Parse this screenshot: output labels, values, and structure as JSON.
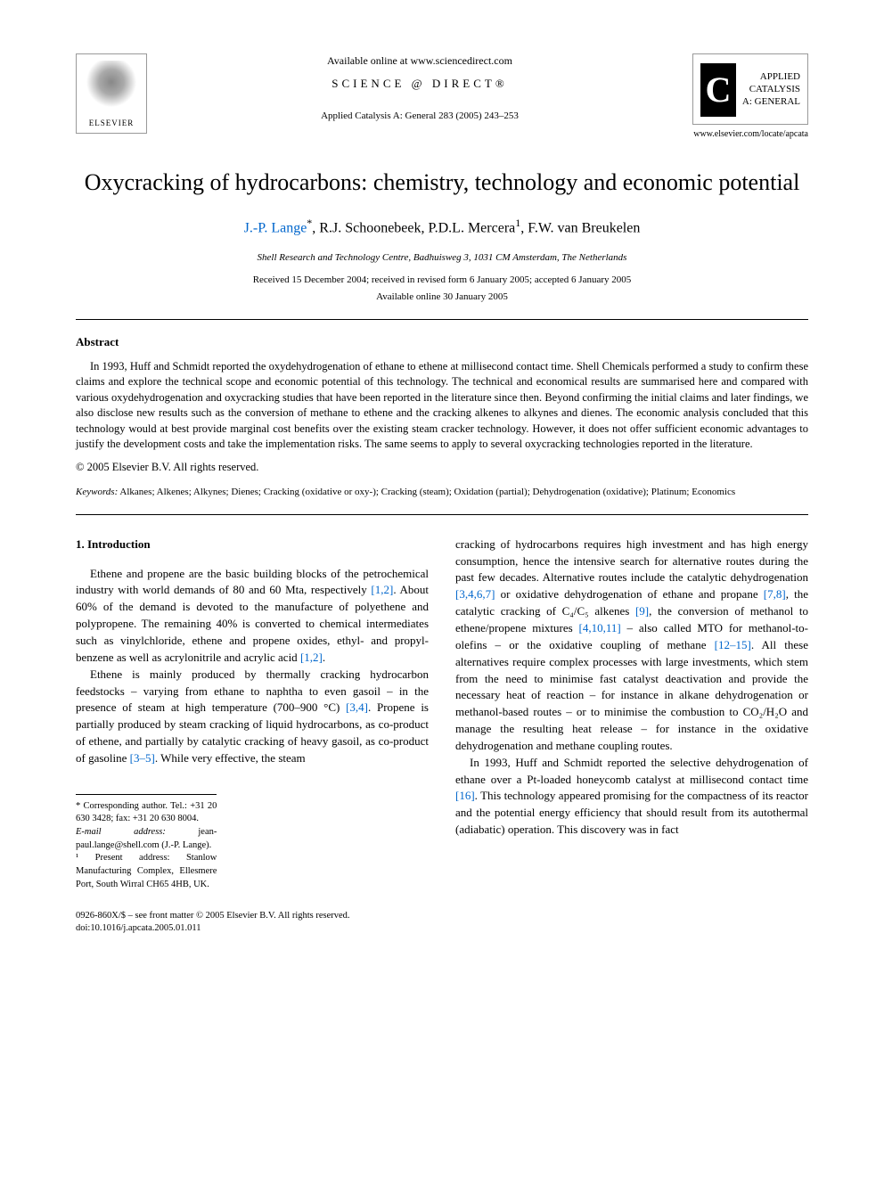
{
  "header": {
    "elsevier_label": "ELSEVIER",
    "available_online": "Available online at www.sciencedirect.com",
    "sciencedirect": "SCIENCE @ DIRECT®",
    "journal_ref": "Applied Catalysis A: General 283 (2005) 243–253",
    "journal_box_c": "C",
    "journal_box_line1": "APPLIED",
    "journal_box_line2": "CATALYSIS",
    "journal_box_line3": "A: GENERAL",
    "journal_url": "www.elsevier.com/locate/apcata"
  },
  "title": "Oxycracking of hydrocarbons: chemistry, technology and economic potential",
  "authors": {
    "a1": "J.-P. Lange",
    "a1_sup": "*",
    "a2": ", R.J. Schoonebeek, P.D.L. Mercera",
    "a2_sup": "1",
    "a3": ", F.W. van Breukelen"
  },
  "affiliation": "Shell Research and Technology Centre, Badhuisweg 3, 1031 CM Amsterdam, The Netherlands",
  "dates_line1": "Received 15 December 2004; received in revised form 6 January 2005; accepted 6 January 2005",
  "dates_line2": "Available online 30 January 2005",
  "abstract": {
    "heading": "Abstract",
    "text": "In 1993, Huff and Schmidt reported the oxydehydrogenation of ethane to ethene at millisecond contact time. Shell Chemicals performed a study to confirm these claims and explore the technical scope and economic potential of this technology. The technical and economical results are summarised here and compared with various oxydehydrogenation and oxycracking studies that have been reported in the literature since then. Beyond confirming the initial claims and later findings, we also disclose new results such as the conversion of methane to ethene and the cracking alkenes to alkynes and dienes. The economic analysis concluded that this technology would at best provide marginal cost benefits over the existing steam cracker technology. However, it does not offer sufficient economic advantages to justify the development costs and take the implementation risks. The same seems to apply to several oxycracking technologies reported in the literature.",
    "copyright": "© 2005 Elsevier B.V. All rights reserved."
  },
  "keywords": {
    "label": "Keywords:",
    "text": " Alkanes; Alkenes; Alkynes; Dienes; Cracking (oxidative or oxy-); Cracking (steam); Oxidation (partial); Dehydrogenation (oxidative); Platinum; Economics"
  },
  "section1": {
    "heading": "1. Introduction",
    "p1_a": "Ethene and propene are the basic building blocks of the petrochemical industry with world demands of 80 and 60 Mta, respectively ",
    "p1_ref1": "[1,2]",
    "p1_b": ". About 60% of the demand is devoted to the manufacture of polyethene and polypropene. The remaining 40% is converted to chemical intermediates such as vinylchloride, ethene and propene oxides, ethyl- and propyl-benzene as well as acrylonitrile and acrylic acid ",
    "p1_ref2": "[1,2]",
    "p1_c": ".",
    "p2_a": "Ethene is mainly produced by thermally cracking hydrocarbon feedstocks – varying from ethane to naphtha to even gasoil – in the presence of steam at high temperature (700–900 °C) ",
    "p2_ref1": "[3,4]",
    "p2_b": ". Propene is partially produced by steam cracking of liquid hydrocarbons, as co-product of ethene, and partially by catalytic cracking of heavy gasoil, as co-product of gasoline ",
    "p2_ref2": "[3–5]",
    "p2_c": ". While very effective, the steam",
    "p3_a": "cracking of hydrocarbons requires high investment and has high energy consumption, hence the intensive search for alternative routes during the past few decades. Alternative routes include the catalytic dehydrogenation ",
    "p3_ref1": "[3,4,6,7]",
    "p3_b": " or oxidative dehydrogenation of ethane and propane ",
    "p3_ref2": "[7,8]",
    "p3_c": ", the catalytic cracking of C₄/C₅ alkenes ",
    "p3_ref3": "[9]",
    "p3_d": ", the conversion of methanol to ethene/propene mixtures ",
    "p3_ref4": "[4,10,11]",
    "p3_e": " – also called MTO for methanol-to-olefins – or the oxidative coupling of methane ",
    "p3_ref5": "[12–15]",
    "p3_f": ". All these alternatives require complex processes with large investments, which stem from the need to minimise fast catalyst deactivation and provide the necessary heat of reaction – for instance in alkane dehydrogenation or methanol-based routes – or to minimise the combustion to CO₂/H₂O and manage the resulting heat release – for instance in the oxidative dehydrogenation and methane coupling routes.",
    "p4_a": "In 1993, Huff and Schmidt reported the selective dehydrogenation of ethane over a Pt-loaded honeycomb catalyst at millisecond contact time ",
    "p4_ref1": "[16]",
    "p4_b": ". This technology appeared promising for the compactness of its reactor and the potential energy efficiency that should result from its autothermal (adiabatic) operation. This discovery was in fact"
  },
  "footnotes": {
    "corr_label": "* Corresponding author. Tel.: +31 20 630 3428; fax: +31 20 630 8004.",
    "email_label": "E-mail address:",
    "email_value": " jean-paul.lange@shell.com (J.-P. Lange).",
    "note1": "¹ Present address: Stanlow Manufacturing Complex, Ellesmere Port, South Wirral CH65 4HB, UK."
  },
  "footer": {
    "line1": "0926-860X/$ – see front matter © 2005 Elsevier B.V. All rights reserved.",
    "line2": "doi:10.1016/j.apcata.2005.01.011"
  },
  "colors": {
    "link": "#0066cc",
    "text": "#000000",
    "background": "#ffffff",
    "border": "#999999"
  }
}
